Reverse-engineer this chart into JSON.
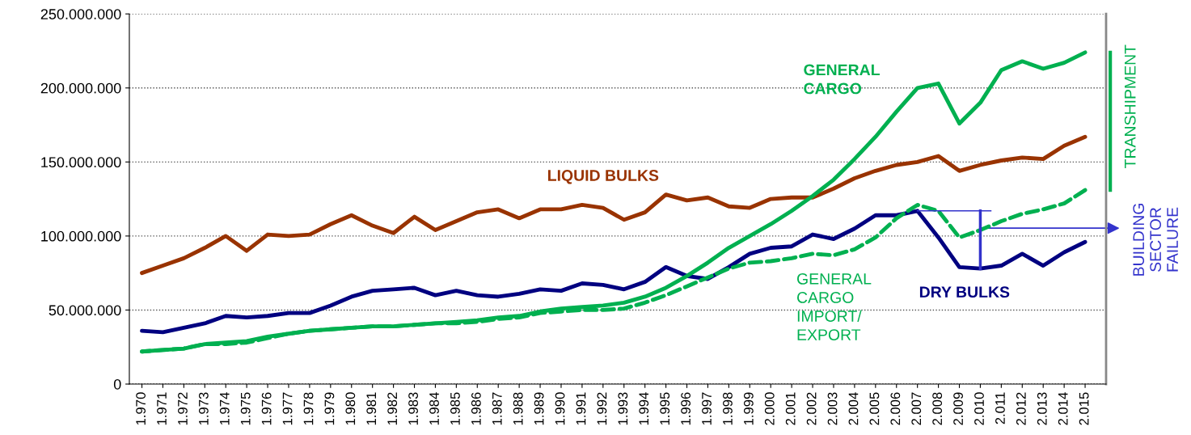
{
  "chart_data": {
    "type": "line",
    "x": [
      1970,
      1971,
      1972,
      1973,
      1974,
      1975,
      1976,
      1977,
      1978,
      1979,
      1980,
      1981,
      1982,
      1983,
      1984,
      1985,
      1986,
      1987,
      1988,
      1989,
      1990,
      1991,
      1992,
      1993,
      1994,
      1995,
      1996,
      1997,
      1998,
      1999,
      2000,
      2001,
      2002,
      2003,
      2004,
      2005,
      2006,
      2007,
      2008,
      2009,
      2010,
      2011,
      2012,
      2013,
      2014,
      2015
    ],
    "series": [
      {
        "name": "LIQUID BULKS",
        "color": "#993300",
        "values": [
          75000000,
          80000000,
          85000000,
          92000000,
          100000000,
          90000000,
          101000000,
          100000000,
          101000000,
          108000000,
          114000000,
          107000000,
          102000000,
          113000000,
          104000000,
          110000000,
          116000000,
          118000000,
          112000000,
          118000000,
          118000000,
          121000000,
          119000000,
          111000000,
          116000000,
          128000000,
          124000000,
          126000000,
          120000000,
          119000000,
          125000000,
          126000000,
          126000000,
          132000000,
          139000000,
          144000000,
          148000000,
          150000000,
          154000000,
          144000000,
          148000000,
          151000000,
          153000000,
          152000000,
          161000000,
          167000000
        ]
      },
      {
        "name": "DRY BULKS",
        "color": "#000080",
        "values": [
          36000000,
          35000000,
          38000000,
          41000000,
          46000000,
          45000000,
          46000000,
          48000000,
          48000000,
          53000000,
          59000000,
          63000000,
          64000000,
          65000000,
          60000000,
          63000000,
          60000000,
          59000000,
          61000000,
          64000000,
          63000000,
          68000000,
          67000000,
          64000000,
          69000000,
          79000000,
          73000000,
          71000000,
          79000000,
          88000000,
          92000000,
          93000000,
          101000000,
          98000000,
          105000000,
          114000000,
          114000000,
          117000000,
          99000000,
          79000000,
          78000000,
          80000000,
          88000000,
          80000000,
          89000000,
          96000000
        ]
      },
      {
        "name": "GENERAL\nCARGO",
        "color": "#00b050",
        "values": [
          22000000,
          23000000,
          24000000,
          27000000,
          28000000,
          29000000,
          32000000,
          34000000,
          36000000,
          37000000,
          38000000,
          39000000,
          39000000,
          40000000,
          41000000,
          42000000,
          43000000,
          45000000,
          46000000,
          49000000,
          51000000,
          52000000,
          53000000,
          55000000,
          59000000,
          65000000,
          73000000,
          82000000,
          92000000,
          100000000,
          108000000,
          117000000,
          127000000,
          138000000,
          152000000,
          167000000,
          184000000,
          200000000,
          203000000,
          176000000,
          190000000,
          212000000,
          218000000,
          213000000,
          217000000,
          224000000
        ]
      },
      {
        "name": "GENERAL\nCARGO\nIMPORT/\nEXPORT",
        "color": "#00b050",
        "line_style": "dashed",
        "values": [
          22000000,
          23000000,
          24000000,
          27000000,
          27000000,
          28000000,
          31000000,
          34000000,
          36000000,
          37000000,
          38000000,
          39000000,
          39000000,
          40000000,
          41000000,
          41000000,
          42000000,
          44000000,
          45000000,
          48000000,
          49000000,
          50000000,
          50000000,
          51000000,
          55000000,
          60000000,
          66000000,
          72000000,
          78000000,
          82000000,
          83000000,
          85000000,
          88000000,
          87000000,
          91000000,
          99000000,
          112000000,
          121000000,
          117000000,
          99000000,
          104000000,
          110000000,
          115000000,
          118000000,
          122000000,
          131000000
        ]
      }
    ],
    "xlim": [
      1969.4,
      2016.0
    ],
    "xticks": [
      {
        "value": 1970,
        "label": "1.970"
      },
      {
        "value": 1971,
        "label": "1.971"
      },
      {
        "value": 1972,
        "label": "1.972"
      },
      {
        "value": 1973,
        "label": "1.973"
      },
      {
        "value": 1974,
        "label": "1.974"
      },
      {
        "value": 1975,
        "label": "1.975"
      },
      {
        "value": 1976,
        "label": "1.976"
      },
      {
        "value": 1977,
        "label": "1.977"
      },
      {
        "value": 1978,
        "label": "1.978"
      },
      {
        "value": 1979,
        "label": "1.979"
      },
      {
        "value": 1980,
        "label": "1.980"
      },
      {
        "value": 1981,
        "label": "1.981"
      },
      {
        "value": 1982,
        "label": "1.982"
      },
      {
        "value": 1983,
        "label": "1.983"
      },
      {
        "value": 1984,
        "label": "1.984"
      },
      {
        "value": 1985,
        "label": "1.985"
      },
      {
        "value": 1986,
        "label": "1.986"
      },
      {
        "value": 1987,
        "label": "1.987"
      },
      {
        "value": 1988,
        "label": "1.988"
      },
      {
        "value": 1989,
        "label": "1.989"
      },
      {
        "value": 1990,
        "label": "1.990"
      },
      {
        "value": 1991,
        "label": "1.991"
      },
      {
        "value": 1992,
        "label": "1.992"
      },
      {
        "value": 1993,
        "label": "1.993"
      },
      {
        "value": 1994,
        "label": "1.994"
      },
      {
        "value": 1995,
        "label": "1.995"
      },
      {
        "value": 1996,
        "label": "1.996"
      },
      {
        "value": 1997,
        "label": "1.997"
      },
      {
        "value": 1998,
        "label": "1.998"
      },
      {
        "value": 1999,
        "label": "1.999"
      },
      {
        "value": 2000,
        "label": "2.000"
      },
      {
        "value": 2001,
        "label": "2.001"
      },
      {
        "value": 2002,
        "label": "2.002"
      },
      {
        "value": 2003,
        "label": "2.003"
      },
      {
        "value": 2004,
        "label": "2.004"
      },
      {
        "value": 2005,
        "label": "2.005"
      },
      {
        "value": 2006,
        "label": "2.006"
      },
      {
        "value": 2007,
        "label": "2.007"
      },
      {
        "value": 2008,
        "label": "2.008"
      },
      {
        "value": 2009,
        "label": "2.009"
      },
      {
        "value": 2010,
        "label": "2.010"
      },
      {
        "value": 2011,
        "label": "2.011"
      },
      {
        "value": 2012,
        "label": "2.012"
      },
      {
        "value": 2013,
        "label": "2.013"
      },
      {
        "value": 2014,
        "label": "2.014"
      },
      {
        "value": 2015,
        "label": "2.015"
      }
    ],
    "ylim": [
      0,
      250000000
    ],
    "yticks": [
      0,
      {
        "value": 50000000,
        "label": "50.000.000"
      },
      {
        "value": 100000000,
        "label": "100.000.000"
      },
      {
        "value": 150000000,
        "label": "150.000.000"
      },
      {
        "value": 200000000,
        "label": "200.000.000"
      },
      {
        "value": 250000000,
        "label": "250.000.000"
      }
    ],
    "grid": "y",
    "legend": false,
    "annotations": [
      "TRANSHIPMENT",
      "BUILDING\nSECTOR\nFAILURE"
    ]
  }
}
